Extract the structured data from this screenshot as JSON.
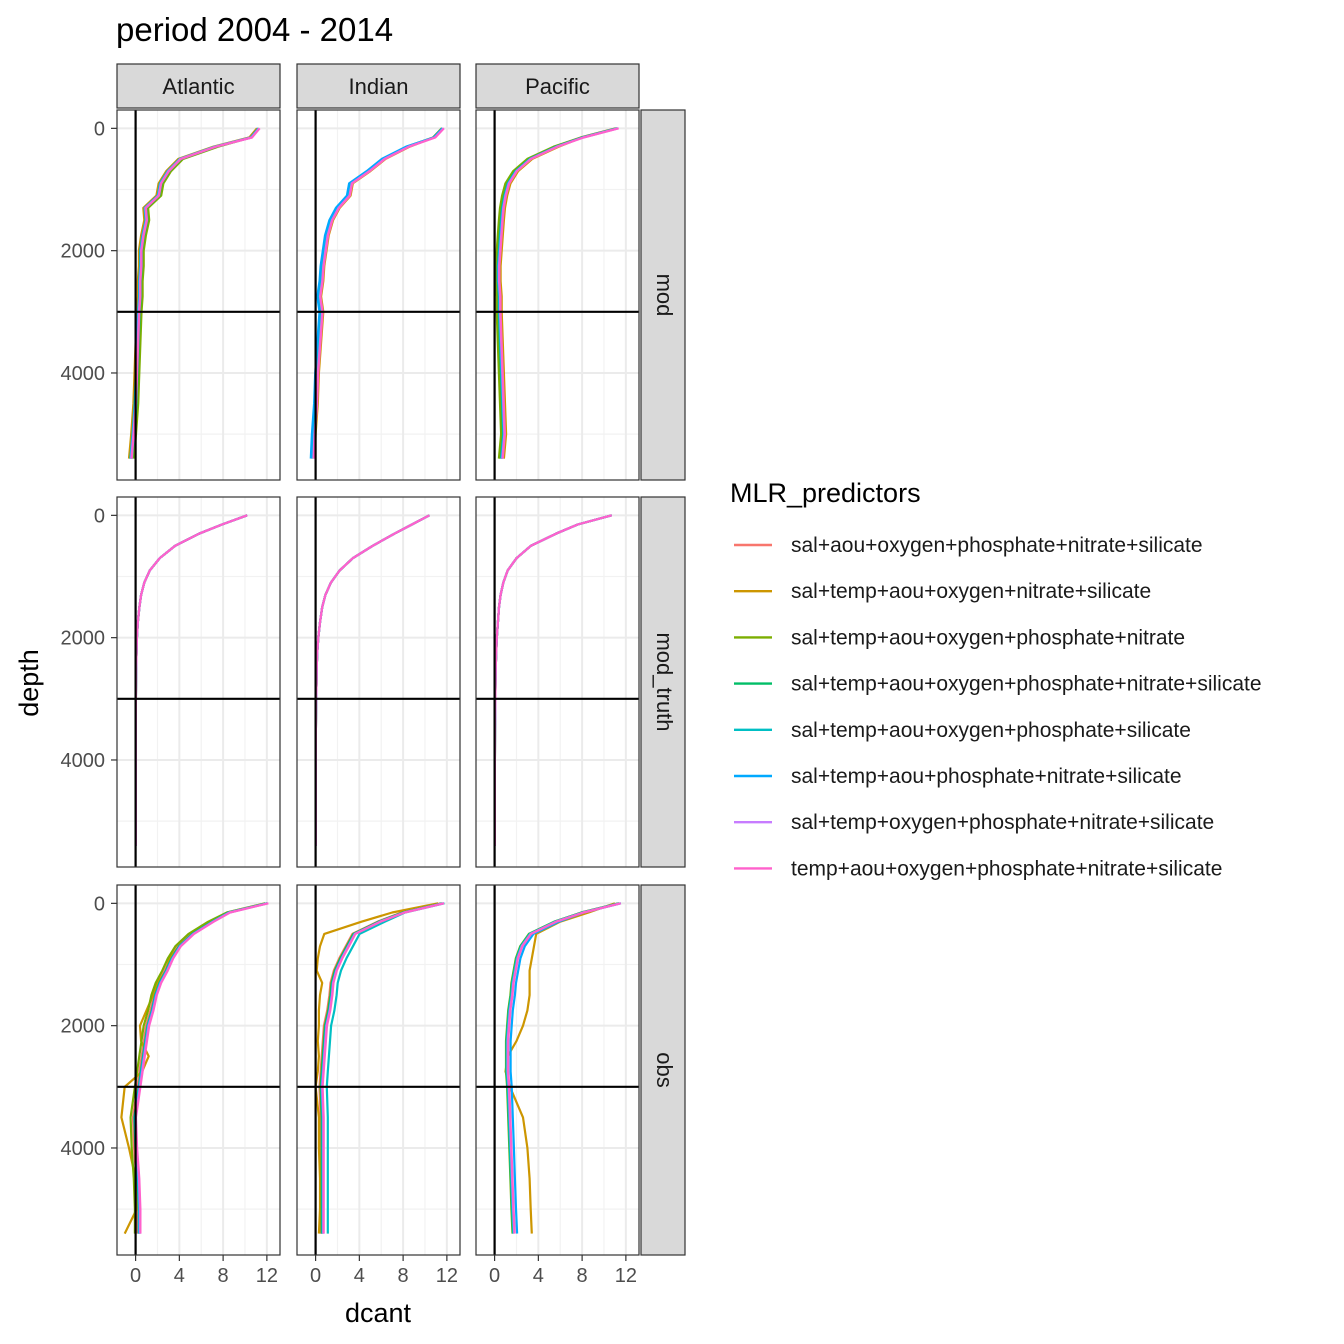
{
  "chart_data": {
    "type": "line",
    "title": "period 2004 - 2014",
    "xlabel": "dcant",
    "ylabel": "depth",
    "xlim": [
      -1.7,
      13.2
    ],
    "ylim": [
      -300,
      5750
    ],
    "y_reversed": true,
    "x_ticks": [
      "0",
      "4",
      "8",
      "12"
    ],
    "y_ticks": [
      "0",
      "2000",
      "4000"
    ],
    "hline_depth": 3000,
    "vline_dcant": 0,
    "grid": true,
    "legend_position": "right",
    "legend_title": "MLR_predictors",
    "facet_cols": [
      "Atlantic",
      "Indian",
      "Pacific"
    ],
    "facet_rows": [
      "mod",
      "mod_truth",
      "obs"
    ],
    "series": [
      {
        "name": "sal+aou+oxygen+phosphate+nitrate+silicate",
        "color": "#F8766D"
      },
      {
        "name": "sal+temp+aou+oxygen+nitrate+silicate",
        "color": "#CD9600"
      },
      {
        "name": "sal+temp+aou+oxygen+phosphate+nitrate",
        "color": "#7CAE00"
      },
      {
        "name": "sal+temp+aou+oxygen+phosphate+nitrate+silicate",
        "color": "#00BE67"
      },
      {
        "name": "sal+temp+aou+oxygen+phosphate+silicate",
        "color": "#00BFC4"
      },
      {
        "name": "sal+temp+aou+phosphate+nitrate+silicate",
        "color": "#00A9FF"
      },
      {
        "name": "sal+temp+oxygen+phosphate+nitrate+silicate",
        "color": "#C77CFF"
      },
      {
        "name": "temp+aou+oxygen+phosphate+nitrate+silicate",
        "color": "#FF61CC"
      }
    ],
    "depths": [
      0,
      150,
      300,
      500,
      700,
      900,
      1100,
      1300,
      1500,
      1750,
      2000,
      2250,
      2500,
      2750,
      3000,
      3500,
      4000,
      4500,
      5000,
      5400
    ],
    "panels": {
      "mod": {
        "Atlantic": {
          "base": [
            11.2,
            10.5,
            7.2,
            4.0,
            2.9,
            2.2,
            2.0,
            0.8,
            0.9,
            0.6,
            0.4,
            0.4,
            0.3,
            0.3,
            0.2,
            0.1,
            0.0,
            -0.1,
            -0.3,
            -0.5
          ],
          "offsets": {
            "sal+temp+aou+oxygen+phosphate+nitrate": 0.4,
            "sal+temp+aou+oxygen+phosphate+nitrate+silicate": 0.2,
            "sal+aou+oxygen+phosphate+nitrate+silicate": 0.15
          }
        },
        "Indian": {
          "base": [
            11.6,
            10.8,
            8.4,
            6.2,
            4.8,
            3.2,
            3.0,
            2.0,
            1.4,
            1.0,
            0.8,
            0.6,
            0.5,
            0.3,
            0.5,
            0.3,
            0.1,
            0.0,
            -0.2,
            -0.3
          ],
          "offsets": {
            "sal+temp+aou+oxygen+nitrate+silicate": 0.3,
            "sal+temp+aou+phosphate+nitrate+silicate": -0.2,
            "sal+aou+oxygen+phosphate+nitrate+silicate": 0.25
          }
        },
        "Pacific": {
          "base": [
            11.2,
            8.0,
            5.6,
            3.2,
            1.9,
            1.2,
            0.9,
            0.7,
            0.6,
            0.5,
            0.4,
            0.3,
            0.3,
            0.4,
            0.4,
            0.5,
            0.6,
            0.7,
            0.8,
            0.6
          ],
          "offsets": {
            "sal+temp+aou+oxygen+nitrate+silicate": 0.35,
            "sal+temp+aou+oxygen+phosphate+nitrate": -0.15
          }
        }
      },
      "mod_truth": {
        "Atlantic": {
          "base": [
            10.2,
            7.9,
            5.8,
            3.6,
            2.2,
            1.3,
            0.8,
            0.5,
            0.35,
            0.2,
            0.12,
            0.08,
            0.05,
            0.04,
            0.03,
            0.02,
            0.02,
            0.02,
            0.02,
            0.02
          ],
          "offsets": {}
        },
        "Indian": {
          "base": [
            10.4,
            8.8,
            7.2,
            5.2,
            3.4,
            2.2,
            1.4,
            0.9,
            0.6,
            0.4,
            0.25,
            0.15,
            0.1,
            0.08,
            0.05,
            0.03,
            0.02,
            0.02,
            0.02,
            0.02
          ],
          "offsets": {}
        },
        "Pacific": {
          "base": [
            10.7,
            7.6,
            5.6,
            3.3,
            2.0,
            1.2,
            0.8,
            0.55,
            0.4,
            0.3,
            0.2,
            0.15,
            0.1,
            0.08,
            0.06,
            0.04,
            0.03,
            0.03,
            0.03,
            0.03
          ],
          "offsets": {}
        }
      },
      "obs": {
        "Atlantic": {
          "base": [
            12.0,
            8.5,
            7.0,
            5.2,
            4.0,
            3.3,
            2.8,
            2.2,
            1.8,
            1.5,
            1.1,
            0.9,
            0.7,
            0.5,
            0.3,
            -0.1,
            0.0,
            0.2,
            0.3,
            0.3
          ],
          "offsets": {
            "sal+temp+aou+oxygen+nitrate+silicate": -1.0,
            "sal+temp+aou+oxygen+phosphate+nitrate": -0.3
          }
        },
        "Indian": {
          "base": [
            11.6,
            8.0,
            5.8,
            3.5,
            2.9,
            2.3,
            1.8,
            1.5,
            1.4,
            1.2,
            0.9,
            0.8,
            0.7,
            0.6,
            0.5,
            0.6,
            0.6,
            0.6,
            0.6,
            0.6
          ],
          "offsets": {
            "sal+temp+aou+oxygen+nitrate+silicate": -0.5,
            "sal+temp+aou+oxygen+phosphate+silicate": 0.5
          }
        },
        "Pacific": {
          "base": [
            11.4,
            8.0,
            5.5,
            3.2,
            2.4,
            2.0,
            1.8,
            1.6,
            1.5,
            1.3,
            1.2,
            1.1,
            1.1,
            1.1,
            1.2,
            1.3,
            1.4,
            1.5,
            1.6,
            1.7
          ],
          "offsets": {
            "sal+aou+oxygen+phosphate+nitrate+silicate": 0.2,
            "sal+temp+aou+phosphate+nitrate+silicate": 0.3
          }
        }
      },
      "special": {
        "obs_Indian_sal+temp+aou+oxygen+nitrate+silicate": [
          11.2,
          7.0,
          4.2,
          0.8,
          0.4,
          0.2,
          0.1,
          0.6,
          0.4,
          0.3,
          0.3,
          0.2,
          0.3,
          0.2,
          0.0,
          0.3,
          0.3,
          0.4,
          0.4,
          0.3
        ],
        "obs_Pacific_sal+temp+aou+oxygen+nitrate+silicate": [
          11.0,
          8.6,
          6.0,
          3.8,
          3.6,
          3.4,
          3.2,
          3.2,
          3.2,
          3.0,
          2.6,
          2.0,
          1.2,
          1.0,
          1.4,
          2.6,
          3.0,
          3.2,
          3.3,
          3.4
        ],
        "obs_Atlantic_sal+temp+aou+oxygen+nitrate+silicate": [
          12.0,
          8.5,
          7.0,
          5.2,
          4.0,
          3.1,
          2.8,
          2.0,
          1.6,
          1.0,
          0.4,
          0.5,
          1.2,
          0.6,
          -1.0,
          -1.3,
          -0.6,
          0.0,
          0.1,
          -1.0
        ]
      }
    }
  }
}
